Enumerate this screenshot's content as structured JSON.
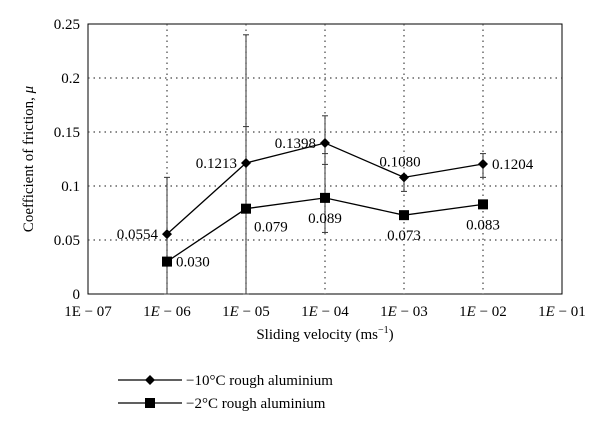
{
  "chart_data": {
    "type": "line",
    "xlabel_main": "Sliding velocity (ms",
    "xlabel_sup": "−1",
    "xlabel_end": ")",
    "ylabel_main": "Coefficient of friction, ",
    "ylabel_symbol": "μ",
    "x_scale": "log",
    "grid": true,
    "ylim": [
      0,
      0.25
    ],
    "yticks": [
      {
        "value": 0,
        "label": "0"
      },
      {
        "value": 0.05,
        "label": "0.05"
      },
      {
        "value": 0.1,
        "label": "0.1"
      },
      {
        "value": 0.15,
        "label": "0.15"
      },
      {
        "value": 0.2,
        "label": "0.2"
      },
      {
        "value": 0.25,
        "label": "0.25"
      }
    ],
    "xticks": [
      {
        "value": 1e-07,
        "label": "1E − 07",
        "italic_e": false
      },
      {
        "value": 1e-06,
        "label": "1E − 06",
        "italic_e": true
      },
      {
        "value": 1e-05,
        "label": "1E − 05",
        "italic_e": true
      },
      {
        "value": 0.0001,
        "label": "1E − 04",
        "italic_e": true
      },
      {
        "value": 0.001,
        "label": "1E − 03",
        "italic_e": true
      },
      {
        "value": 0.01,
        "label": "1E − 02",
        "italic_e": true
      },
      {
        "value": 0.1,
        "label": "1E − 01",
        "italic_e": true
      }
    ],
    "legend_position": "bottom-left, below plot",
    "series": [
      {
        "name": "−10°C rough aluminium",
        "marker": "diamond",
        "color": "#000000",
        "x": [
          1e-06,
          1e-05,
          0.0001,
          0.001,
          0.01
        ],
        "y": [
          0.0554,
          0.1213,
          0.1398,
          0.108,
          0.1204
        ],
        "err_low": [
          0.0,
          0.0,
          0.12,
          0.095,
          0.108
        ],
        "err_high": [
          0.108,
          0.24,
          0.165,
          0.11,
          0.13
        ],
        "labels": [
          "0.0554",
          "0.1213",
          "0.1398",
          "0.1080",
          "0.1204"
        ],
        "label_pos": [
          "left",
          "left",
          "left",
          "above-left",
          "right"
        ]
      },
      {
        "name": "−2°C rough aluminium",
        "marker": "square",
        "color": "#000000",
        "x": [
          1e-06,
          1e-05,
          0.0001,
          0.001,
          0.01
        ],
        "y": [
          0.03,
          0.079,
          0.089,
          0.073,
          0.083
        ],
        "err_low": [
          0.0,
          0.0,
          0.057,
          0.072,
          0.083
        ],
        "err_high": [
          0.03,
          0.155,
          0.13,
          0.075,
          0.085
        ],
        "labels": [
          "0.030",
          "0.079",
          "0.089",
          "0.073",
          "0.083"
        ],
        "label_pos": [
          "right",
          "below-right",
          "below",
          "below",
          "below"
        ]
      }
    ]
  }
}
